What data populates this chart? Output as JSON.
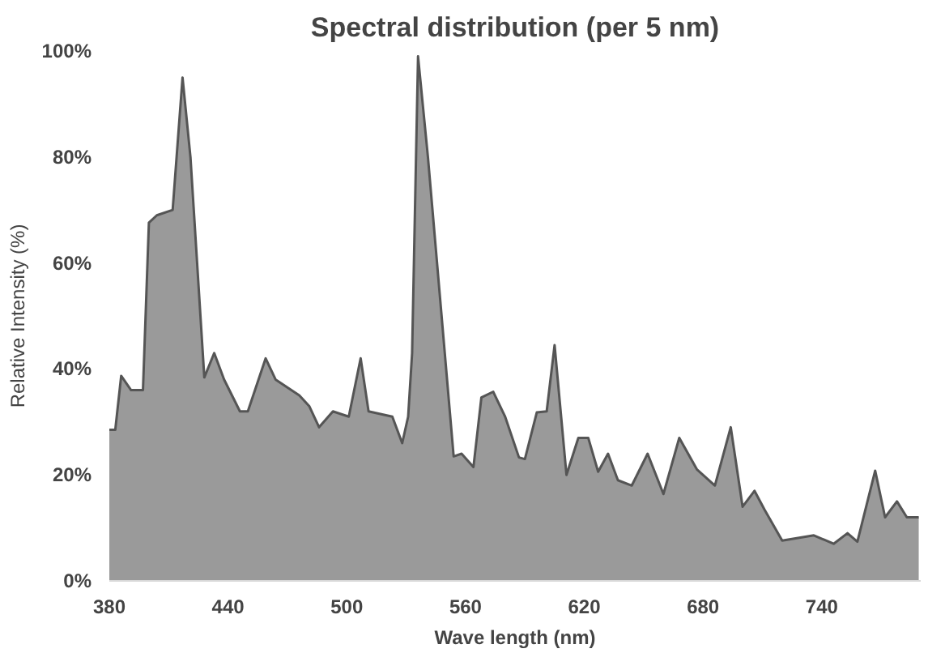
{
  "chart_data": {
    "type": "area",
    "title": "Spectral distribution (per 5 nm)",
    "xlabel": "Wave length (nm)",
    "ylabel": "Relative Intensity (%)",
    "xlim": [
      380,
      790
    ],
    "xticks": [
      380,
      440,
      500,
      560,
      620,
      680,
      740
    ],
    "ylim": [
      0,
      100
    ],
    "yticks": [
      {
        "value": 0,
        "label": "0%"
      },
      {
        "value": 20,
        "label": "20%"
      },
      {
        "value": 40,
        "label": "40%"
      },
      {
        "value": 60,
        "label": "60%"
      },
      {
        "value": 80,
        "label": "80%"
      },
      {
        "value": 100,
        "label": "100%"
      }
    ],
    "grid": false,
    "series": [
      {
        "color": "#9a9a9a",
        "x": [
          380,
          383,
          386,
          391,
          397,
          400,
          404,
          412,
          417,
          421,
          428,
          433,
          438,
          446,
          450,
          459,
          464,
          476,
          481,
          486,
          493,
          501,
          507,
          511,
          523,
          528,
          531,
          533,
          536,
          541,
          554,
          558,
          564,
          568,
          574,
          580,
          587,
          590,
          596,
          601,
          605,
          611,
          617,
          622,
          627,
          632,
          637,
          644,
          652,
          660,
          668,
          677,
          686,
          694,
          700,
          706,
          711,
          720,
          736,
          746,
          753,
          758,
          767,
          772,
          778,
          783,
          789
        ],
        "values": [
          28.5,
          28.5,
          38.7,
          36,
          36,
          67.6,
          69,
          70,
          95,
          80,
          38.4,
          43,
          38,
          32,
          32,
          42,
          38,
          35,
          33,
          29,
          32,
          31,
          42,
          32,
          31,
          26,
          31,
          43,
          99,
          80,
          23.5,
          24,
          21.5,
          34.6,
          35.7,
          31,
          23.3,
          23,
          31.8,
          32,
          44.5,
          20,
          27,
          27,
          20.6,
          24,
          19,
          18,
          24,
          16.4,
          27,
          21,
          18,
          29,
          14,
          17,
          13.5,
          7.6,
          8.6,
          7,
          9,
          7.4,
          20.8,
          12,
          15,
          12,
          12
        ]
      }
    ]
  }
}
